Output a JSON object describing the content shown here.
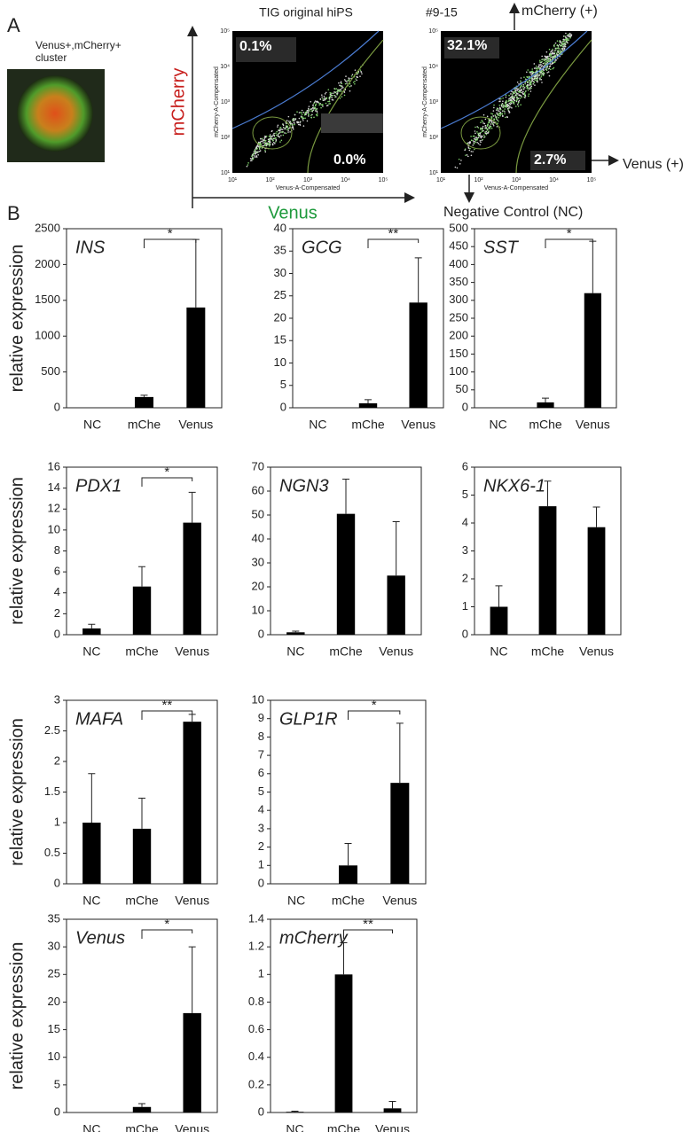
{
  "panel_a": {
    "label": "A",
    "image_caption": [
      "Venus+,mCherry+",
      "cluster"
    ],
    "y_label": "mCherry",
    "x_label": "Venus",
    "plots": [
      {
        "title": "TIG original hiPS",
        "gates": [
          "0.1%",
          "0.0%"
        ],
        "x_axis": "Venus-A-Compensated",
        "y_axis": "mCherry-A-Compensated"
      },
      {
        "title": "#9-15",
        "gates": [
          "32.1%",
          "2.7%"
        ],
        "x_axis": "Venus-A-Compensated",
        "y_axis": "mCherry-A-Compensated"
      }
    ],
    "decades": [
      "10¹",
      "10²",
      "10³",
      "10⁴",
      "10⁵"
    ],
    "arrows": [
      "mCherry (+)",
      "Venus (+)",
      "Negative Control (NC)"
    ]
  },
  "panel_b_label": "B",
  "chart_data": [
    {
      "type": "bar",
      "title": "INS",
      "y_label": "relative expression",
      "categories": [
        "NC",
        "mChe",
        "Venus"
      ],
      "values": [
        0,
        150,
        1400
      ],
      "errors": [
        0,
        25,
        950
      ],
      "color": "#000000",
      "ylim": [
        0,
        2500
      ],
      "yticks": [
        0,
        500,
        1000,
        1500,
        2000,
        2500
      ],
      "significance": {
        "from": 1,
        "to": 2,
        "label": "*"
      }
    },
    {
      "type": "bar",
      "title": "GCG",
      "categories": [
        "NC",
        "mChe",
        "Venus"
      ],
      "values": [
        0,
        1,
        23.5
      ],
      "errors": [
        0,
        0.8,
        10
      ],
      "color": "#000000",
      "ylim": [
        0,
        40
      ],
      "yticks": [
        0,
        5,
        10,
        15,
        20,
        25,
        30,
        35,
        40
      ],
      "significance": {
        "from": 1,
        "to": 2,
        "label": "**"
      }
    },
    {
      "type": "bar",
      "title": "SST",
      "categories": [
        "NC",
        "mChe",
        "Venus"
      ],
      "values": [
        0,
        15,
        320
      ],
      "errors": [
        0,
        12,
        145
      ],
      "color": "#000000",
      "ylim": [
        0,
        500
      ],
      "yticks": [
        0,
        50,
        100,
        150,
        200,
        250,
        300,
        350,
        400,
        450,
        500
      ],
      "significance": {
        "from": 1,
        "to": 2,
        "label": "*"
      }
    },
    {
      "type": "bar",
      "title": "PDX1",
      "y_label": "relative expression",
      "categories": [
        "NC",
        "mChe",
        "Venus"
      ],
      "values": [
        0.6,
        4.6,
        10.7
      ],
      "errors": [
        0.4,
        1.9,
        2.9
      ],
      "color": "#000000",
      "ylim": [
        0,
        16
      ],
      "yticks": [
        0,
        2,
        4,
        6,
        8,
        10,
        12,
        14,
        16
      ],
      "significance": {
        "from": 1,
        "to": 2,
        "label": "*"
      }
    },
    {
      "type": "bar",
      "title": "NGN3",
      "categories": [
        "NC",
        "mChe",
        "Venus"
      ],
      "values": [
        1,
        50.5,
        24.7
      ],
      "errors": [
        0.5,
        14.5,
        22.5
      ],
      "color": "#000000",
      "ylim": [
        0,
        70
      ],
      "yticks": [
        0,
        10,
        20,
        30,
        40,
        50,
        60,
        70
      ]
    },
    {
      "type": "bar",
      "title": "NKX6-1",
      "categories": [
        "NC",
        "mChe",
        "Venus"
      ],
      "values": [
        1,
        4.6,
        3.85
      ],
      "errors": [
        0.75,
        0.9,
        0.72
      ],
      "color": "#000000",
      "ylim": [
        0,
        6
      ],
      "yticks": [
        0,
        1,
        2,
        3,
        4,
        5,
        6
      ]
    },
    {
      "type": "bar",
      "title": "MAFA",
      "y_label": "relative expression",
      "categories": [
        "NC",
        "mChe",
        "Venus"
      ],
      "values": [
        1,
        0.9,
        2.65
      ],
      "errors": [
        0.8,
        0.5,
        0.12
      ],
      "color": "#000000",
      "ylim": [
        0,
        3
      ],
      "yticks": [
        0,
        0.5,
        1,
        1.5,
        2,
        2.5,
        3
      ],
      "significance": {
        "from": 1,
        "to": 2,
        "label": "**"
      }
    },
    {
      "type": "bar",
      "title": "GLP1R",
      "categories": [
        "NC",
        "mChe",
        "Venus"
      ],
      "values": [
        0,
        1,
        5.5
      ],
      "errors": [
        0,
        1.2,
        3.25
      ],
      "color": "#000000",
      "ylim": [
        0,
        10
      ],
      "yticks": [
        0,
        1,
        2,
        3,
        4,
        5,
        6,
        7,
        8,
        9,
        10
      ],
      "significance": {
        "from": 1,
        "to": 2,
        "label": "*"
      }
    },
    {
      "type": "bar",
      "title": "Venus",
      "y_label": "relative expression",
      "categories": [
        "NC",
        "mChe",
        "Venus"
      ],
      "values": [
        0,
        1,
        18
      ],
      "errors": [
        0,
        0.6,
        12
      ],
      "color": "#000000",
      "ylim": [
        0,
        35
      ],
      "yticks": [
        0,
        5,
        10,
        15,
        20,
        25,
        30,
        35
      ],
      "significance": {
        "from": 1,
        "to": 2,
        "label": "*"
      }
    },
    {
      "type": "bar",
      "title": "mCherry",
      "categories": [
        "NC",
        "mChe",
        "Venus"
      ],
      "values": [
        0.005,
        1,
        0.03
      ],
      "errors": [
        0.005,
        0.23,
        0.05
      ],
      "color": "#000000",
      "ylim": [
        0,
        1.4
      ],
      "yticks": [
        0,
        0.2,
        0.4,
        0.6,
        0.8,
        1,
        1.2,
        1.4
      ],
      "significance": {
        "from": 1,
        "to": 2,
        "label": "**"
      }
    }
  ]
}
